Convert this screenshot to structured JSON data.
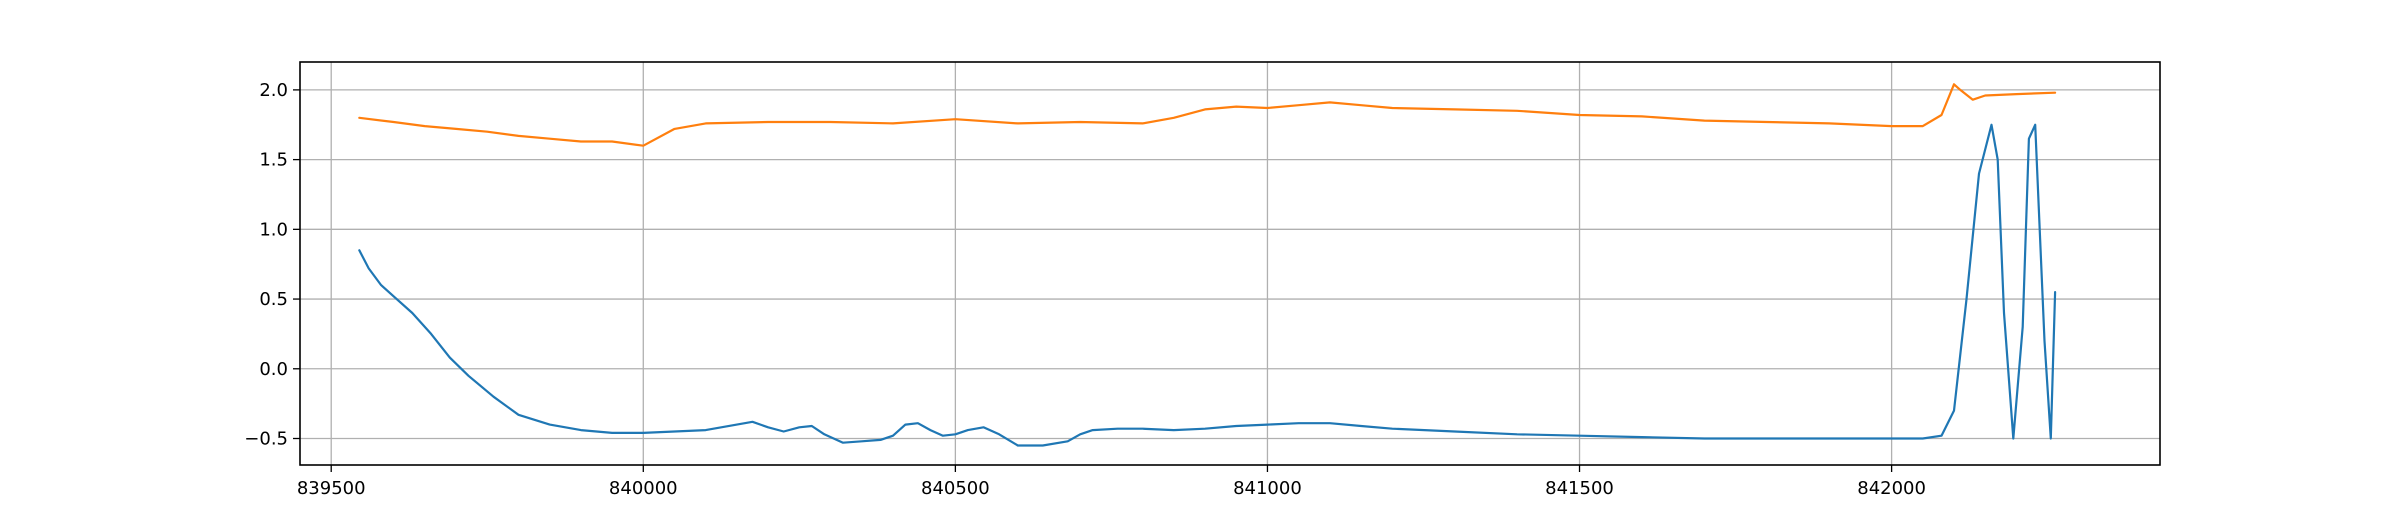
{
  "chart_data": {
    "type": "line",
    "title": "",
    "xlabel": "",
    "ylabel": "",
    "xlim": [
      839450,
      842430
    ],
    "ylim": [
      -0.69,
      2.2
    ],
    "grid": true,
    "x_ticks": [
      839500,
      840000,
      840500,
      841000,
      841500,
      842000
    ],
    "y_ticks": [
      -0.5,
      0.0,
      0.5,
      1.0,
      1.5,
      2.0
    ],
    "x_tick_labels": [
      "839500",
      "840000",
      "840500",
      "841000",
      "841500",
      "842000"
    ],
    "y_tick_labels": [
      "−0.5",
      "0.0",
      "0.5",
      "1.0",
      "1.5",
      "2.0"
    ],
    "series": [
      {
        "color": "#1f77b4",
        "x": [
          839545,
          839560,
          839580,
          839600,
          839630,
          839660,
          839690,
          839720,
          839760,
          839800,
          839850,
          839900,
          839950,
          840000,
          840050,
          840100,
          840150,
          840175,
          840200,
          840225,
          840250,
          840270,
          840290,
          840320,
          840350,
          840380,
          840400,
          840420,
          840440,
          840460,
          840480,
          840500,
          840520,
          840545,
          840570,
          840600,
          840640,
          840680,
          840700,
          840720,
          840760,
          840800,
          840850,
          840900,
          840950,
          841000,
          841050,
          841100,
          841150,
          841200,
          841300,
          841400,
          841500,
          841600,
          841700,
          841800,
          841900,
          842000,
          842050,
          842080,
          842100,
          842120,
          842140,
          842160,
          842170,
          842180,
          842195,
          842210,
          842220,
          842230,
          842245,
          842255,
          842262
        ],
        "y": [
          0.85,
          0.72,
          0.6,
          0.52,
          0.4,
          0.25,
          0.08,
          -0.05,
          -0.2,
          -0.33,
          -0.4,
          -0.44,
          -0.46,
          -0.46,
          -0.45,
          -0.44,
          -0.4,
          -0.38,
          -0.42,
          -0.45,
          -0.42,
          -0.41,
          -0.47,
          -0.53,
          -0.52,
          -0.51,
          -0.48,
          -0.4,
          -0.39,
          -0.44,
          -0.48,
          -0.47,
          -0.44,
          -0.42,
          -0.47,
          -0.55,
          -0.55,
          -0.52,
          -0.47,
          -0.44,
          -0.43,
          -0.43,
          -0.44,
          -0.43,
          -0.41,
          -0.4,
          -0.39,
          -0.39,
          -0.41,
          -0.43,
          -0.45,
          -0.47,
          -0.48,
          -0.49,
          -0.5,
          -0.5,
          -0.5,
          -0.5,
          -0.5,
          -0.48,
          -0.3,
          0.5,
          1.4,
          1.75,
          1.5,
          0.4,
          -0.5,
          0.3,
          1.65,
          1.75,
          0.2,
          -0.5,
          0.55
        ]
      },
      {
        "color": "#ff7f0e",
        "x": [
          839545,
          839600,
          839650,
          839700,
          839750,
          839800,
          839850,
          839900,
          839950,
          840000,
          840050,
          840100,
          840200,
          840300,
          840400,
          840500,
          840600,
          840700,
          840800,
          840850,
          840900,
          840950,
          841000,
          841050,
          841100,
          841150,
          841200,
          841300,
          841400,
          841500,
          841600,
          841700,
          841800,
          841900,
          842000,
          842050,
          842080,
          842100,
          842110,
          842130,
          842150,
          842200,
          842262
        ],
        "y": [
          1.8,
          1.77,
          1.74,
          1.72,
          1.7,
          1.67,
          1.65,
          1.63,
          1.63,
          1.6,
          1.72,
          1.76,
          1.77,
          1.77,
          1.76,
          1.79,
          1.76,
          1.77,
          1.76,
          1.8,
          1.86,
          1.88,
          1.87,
          1.89,
          1.91,
          1.89,
          1.87,
          1.86,
          1.85,
          1.82,
          1.81,
          1.78,
          1.77,
          1.76,
          1.74,
          1.74,
          1.82,
          2.04,
          2.0,
          1.93,
          1.96,
          1.97,
          1.98
        ]
      }
    ]
  }
}
